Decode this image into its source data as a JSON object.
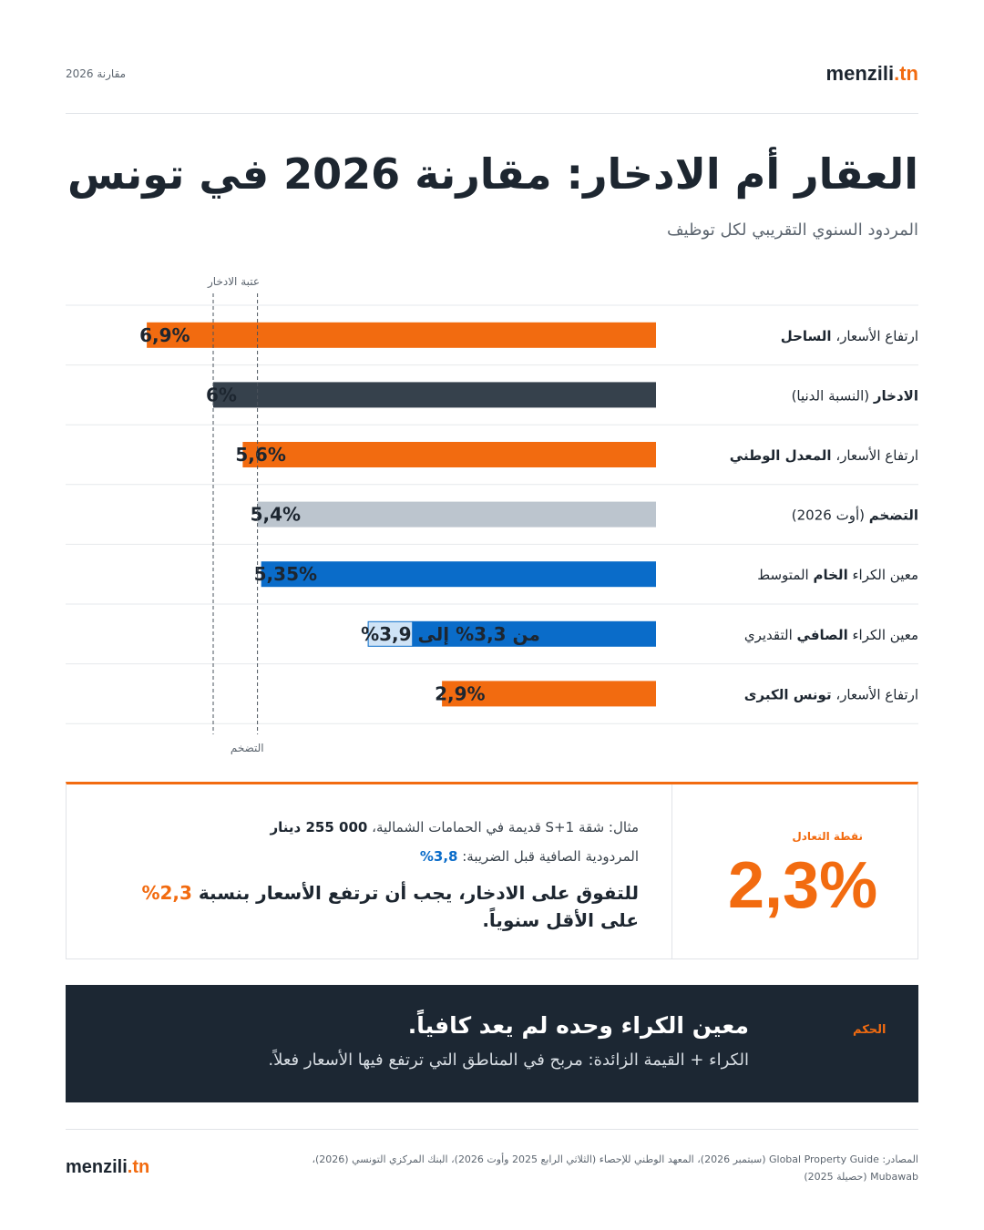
{
  "header": {
    "logo_main": "menzili",
    "logo_tld": ".tn",
    "tag": "مقارنة 2026"
  },
  "title": "العقار أم الادخار: مقارنة 2026 في تونس",
  "subtitle": "المردود السنوي التقريبي لكل توظيف",
  "chart_data": {
    "type": "bar",
    "orientation": "horizontal",
    "unit": "%",
    "xlim": [
      0,
      8.1
    ],
    "categories": [
      {
        "normal": "ارتفاع الأسعار، ",
        "bold": "الساحل",
        "bold_first": false
      },
      {
        "normal": " (النسبة الدنيا)",
        "bold": "الادخار",
        "bold_first": true
      },
      {
        "normal": "ارتفاع الأسعار، ",
        "bold": "المعدل الوطني",
        "bold_first": false
      },
      {
        "normal": " (أوت 2026)",
        "bold": "التضخم",
        "bold_first": true
      },
      {
        "normal_before": "معين الكراء ",
        "bold": "الخام",
        "normal_after": " المتوسط"
      },
      {
        "normal_before": "معين الكراء ",
        "bold": "الصافي",
        "normal_after": " التقديري"
      },
      {
        "normal": "ارتفاع الأسعار، ",
        "bold": "تونس الكبرى",
        "bold_first": false
      }
    ],
    "values": [
      6.9,
      6,
      5.6,
      5.4,
      5.35,
      3.9,
      2.9
    ],
    "range_low": [
      null,
      null,
      null,
      null,
      null,
      3.3,
      null
    ],
    "value_labels": [
      "6,9%",
      "6%",
      "5,6%",
      "5,4%",
      "5,35%",
      "من 3,3% إلى 3,9%",
      "2,9%"
    ],
    "colors": [
      "#f26b10",
      "#36414c",
      "#f26b10",
      "#bcc5ce",
      "#0a6cc9",
      "#0a6cc9",
      "#f26b10"
    ],
    "range_upper_color": "#cfe3f6",
    "reference_lines": [
      {
        "value": 6,
        "label": "عتبة الادخار",
        "label_pos": "top"
      },
      {
        "value": 5.4,
        "label": "التضخم",
        "label_pos": "bottom"
      }
    ]
  },
  "breakeven": {
    "label": "نقطة التعادل",
    "value": "2,3%",
    "example_prefix": "مثال: شقة S+1 قديمة في الحمامات الشمالية، ",
    "example_price": "000 255 دينار",
    "net_prefix": "المردودية الصافية قبل الضريبة: ",
    "net_value": "3,8%",
    "concl_before": "للتفوق على الادخار، يجب أن ترتفع الأسعار بنسبة ",
    "concl_highlight": "2,3%",
    "concl_after": " على الأقل سنوياً."
  },
  "verdict": {
    "label": "الحكم",
    "title": "معين الكراء وحده لم يعد كافياً.",
    "subtitle": "الكراء + القيمة الزائدة: مربح في المناطق التي ترتفع فيها الأسعار فعلاً."
  },
  "footer": {
    "logo_main": "menzili",
    "logo_tld": ".tn",
    "sources": "المصادر: Global Property Guide (سبتمبر 2026)، المعهد الوطني للإحصاء (الثلاثي الرابع 2025 وأوت 2026)، البنك المركزي التونسي (2026)، Mubawab (حصيلة 2025)"
  }
}
